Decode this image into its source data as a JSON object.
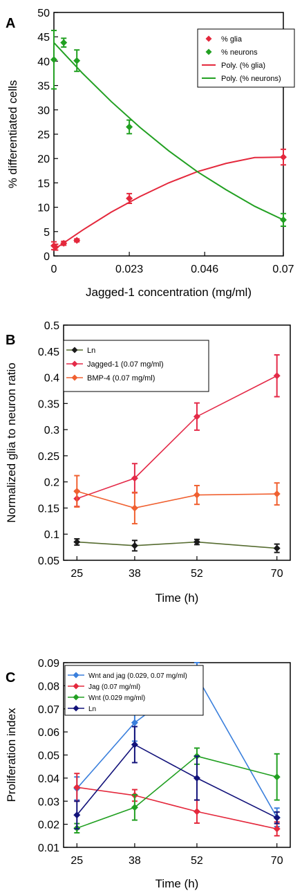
{
  "chart_data": [
    {
      "panel": "A",
      "type": "scatter",
      "xlabel": "Jagged-1 concentration (mg/ml)",
      "ylabel": "% differentiated cells",
      "xlim": [
        0,
        0.07
      ],
      "ylim": [
        0,
        50
      ],
      "xticks": [
        "0",
        "0.023",
        "0.046",
        "0.07"
      ],
      "yticks": [
        "0",
        "5",
        "10",
        "15",
        "20",
        "25",
        "30",
        "35",
        "40",
        "45",
        "50"
      ],
      "legend_position": "top-right",
      "series": [
        {
          "name": "% glia",
          "kind": "points",
          "color": "#e4283c",
          "x": [
            0,
            0.0005,
            0.003,
            0.007,
            0.023,
            0.07
          ],
          "y": [
            2.1,
            1.8,
            2.6,
            3.2,
            11.8,
            20.3
          ],
          "err": [
            0.8,
            0.6,
            0.4,
            0.3,
            1.0,
            1.6
          ]
        },
        {
          "name": "% neurons",
          "kind": "points",
          "color": "#22a022",
          "x": [
            0,
            0.003,
            0.007,
            0.023,
            0.07
          ],
          "y": [
            40.3,
            43.8,
            40.1,
            26.5,
            7.4
          ],
          "err": [
            6.0,
            0.9,
            2.2,
            1.4,
            1.3
          ]
        },
        {
          "name": "Poly. (% glia)",
          "kind": "trend",
          "color": "#e4283c",
          "x": [
            0,
            0.00875,
            0.0175,
            0.02625,
            0.035,
            0.04375,
            0.0525,
            0.06125,
            0.07
          ],
          "y": [
            1.3,
            5.3,
            9.0,
            12.2,
            15.0,
            17.3,
            19.0,
            20.2,
            20.3
          ]
        },
        {
          "name": "Poly. (% neurons)",
          "kind": "trend",
          "color": "#22a022",
          "x": [
            0,
            0.00875,
            0.0175,
            0.02625,
            0.035,
            0.04375,
            0.0525,
            0.06125,
            0.07
          ],
          "y": [
            43.8,
            37.5,
            31.7,
            26.4,
            21.6,
            17.3,
            13.6,
            10.2,
            7.4
          ]
        }
      ]
    },
    {
      "panel": "B",
      "type": "line",
      "xlabel": "Time (h)",
      "ylabel": "Normalized glia to neuron ratio",
      "x": [
        25,
        38,
        52,
        70
      ],
      "xlim": [
        22,
        73
      ],
      "ylim": [
        0.05,
        0.5
      ],
      "xticks": [
        "25",
        "38",
        "52",
        "70"
      ],
      "yticks": [
        "0.05",
        "0.1",
        "0.15",
        "0.2",
        "0.25",
        "0.3",
        "0.35",
        "0.4",
        "0.45",
        "0.5"
      ],
      "legend_position": "top-left",
      "series": [
        {
          "name": "Ln",
          "color": "#1a1a1a",
          "line": "#556b2f",
          "values": [
            0.085,
            0.078,
            0.085,
            0.073
          ],
          "err": [
            0.006,
            0.01,
            0.005,
            0.008
          ]
        },
        {
          "name": "Jagged-1 (0.07 mg/ml)",
          "color": "#e42a48",
          "line": "#e42a48",
          "values": [
            0.168,
            0.207,
            0.325,
            0.403
          ],
          "err": [
            0.015,
            0.028,
            0.026,
            0.04
          ]
        },
        {
          "name": "BMP-4 (0.07 mg/ml)",
          "color": "#f06030",
          "line": "#f06030",
          "values": [
            0.182,
            0.15,
            0.175,
            0.177
          ],
          "err": [
            0.03,
            0.03,
            0.018,
            0.021
          ]
        }
      ]
    },
    {
      "panel": "C",
      "type": "line",
      "xlabel": "Time (h)",
      "ylabel": "Proliferation index",
      "x": [
        25,
        38,
        52,
        70
      ],
      "xlim": [
        22,
        73
      ],
      "ylim": [
        0.01,
        0.09
      ],
      "xticks": [
        "25",
        "38",
        "52",
        "70"
      ],
      "yticks": [
        "0.01",
        "0.02",
        "0.03",
        "0.04",
        "0.05",
        "0.06",
        "0.07",
        "0.08",
        "0.09"
      ],
      "legend_position": "top-left",
      "series": [
        {
          "name": "Wnt and jag (0.029, 0.07 mg/ml)",
          "color": "#3a7fdc",
          "values": [
            0.0355,
            0.064,
            0.084,
            0.023
          ],
          "err": [
            0.005,
            0.008,
            0.006,
            0.004
          ]
        },
        {
          "name": "Jag (0.07 mg/ml)",
          "color": "#e4283c",
          "values": [
            0.036,
            0.0325,
            0.0255,
            0.018
          ],
          "err": [
            0.006,
            0.0025,
            0.005,
            0.003
          ]
        },
        {
          "name": "Wnt (0.029 mg/ml)",
          "color": "#22a022",
          "values": [
            0.0183,
            0.0273,
            0.0495,
            0.0405
          ],
          "err": [
            0.002,
            0.0055,
            0.0035,
            0.01
          ]
        },
        {
          "name": "Ln",
          "color": "#12127a",
          "values": [
            0.024,
            0.0545,
            0.04,
            0.0228
          ],
          "err": [
            0.006,
            0.0078,
            0.0095,
            0.0025
          ]
        }
      ]
    }
  ]
}
